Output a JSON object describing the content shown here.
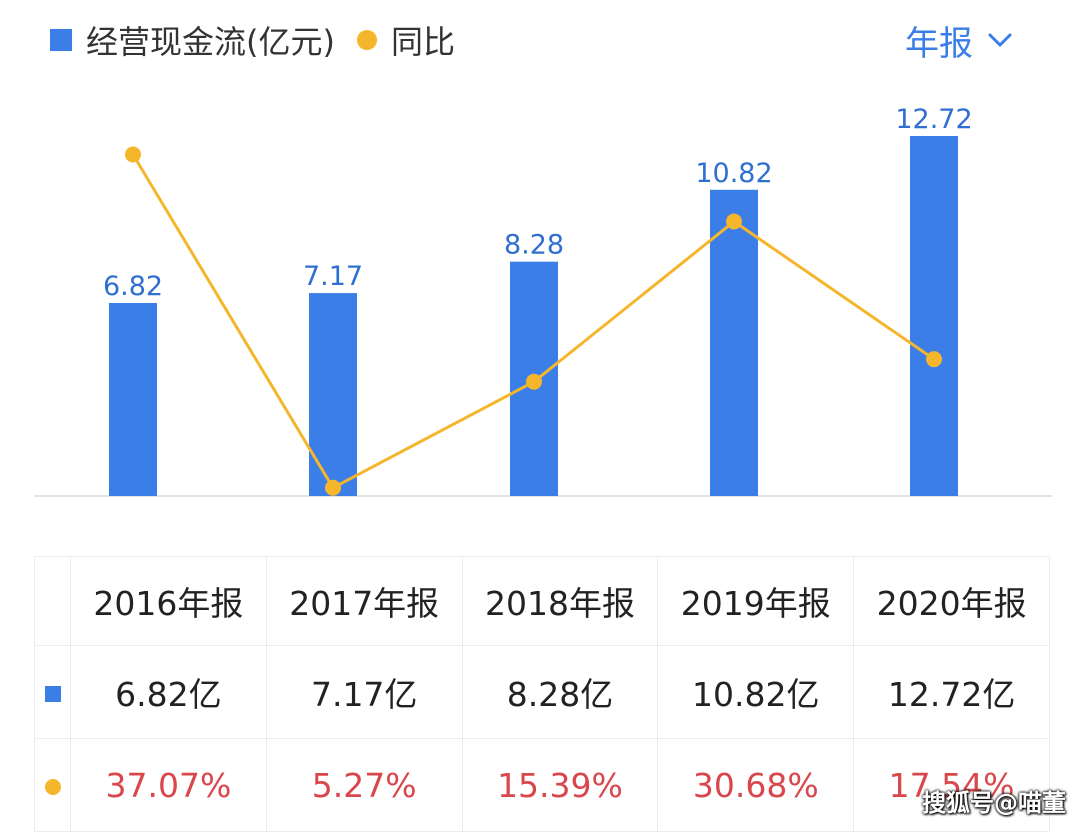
{
  "legend": {
    "bar_label": "经营现金流(亿元)",
    "line_label": "同比"
  },
  "period_selector": {
    "label": "年报"
  },
  "chart_data": {
    "type": "bar",
    "categories": [
      "2016年报",
      "2017年报",
      "2018年报",
      "2019年报",
      "2020年报"
    ],
    "series": [
      {
        "name": "经营现金流(亿元)",
        "type": "bar",
        "values": [
          6.82,
          7.17,
          8.28,
          10.82,
          12.72
        ],
        "data_labels": [
          "6.82",
          "7.17",
          "8.28",
          "10.82",
          "12.72"
        ],
        "color": "#3b7ee8"
      },
      {
        "name": "同比",
        "type": "line",
        "values": [
          37.07,
          5.27,
          15.39,
          30.68,
          17.54
        ],
        "color": "#f6b62b"
      }
    ],
    "grid": false
  },
  "table": {
    "headers": [
      "2016年报",
      "2017年报",
      "2018年报",
      "2019年报",
      "2020年报"
    ],
    "values": [
      "6.82亿",
      "7.17亿",
      "8.28亿",
      "10.82亿",
      "12.72亿"
    ],
    "yoy": [
      "37.07%",
      "5.27%",
      "15.39%",
      "30.68%",
      "17.54%"
    ]
  },
  "colors": {
    "bar": "#3b7ee8",
    "line": "#f6b62b",
    "yoy_text": "#d9464b",
    "accent": "#3b7ee8"
  },
  "watermark": "搜狐号@喵董"
}
